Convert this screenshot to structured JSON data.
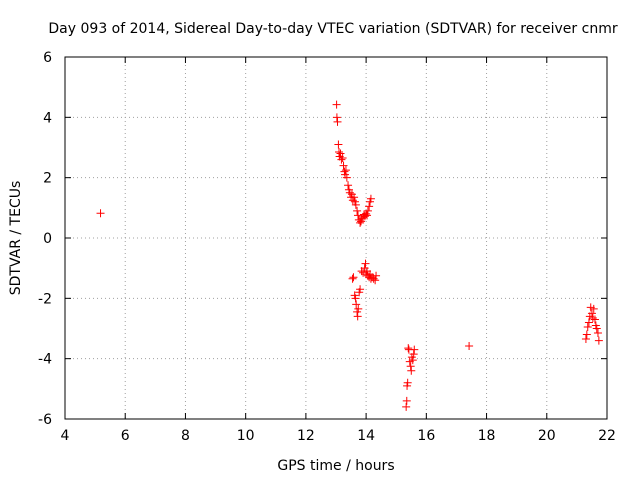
{
  "chart_data": {
    "type": "scatter",
    "title": "Day 093 of 2014, Sidereal Day-to-day VTEC variation (SDTVAR) for receiver cnmr",
    "xlabel": "GPS time / hours",
    "ylabel": "SDTVAR / TECUs",
    "xlim": [
      4,
      22
    ],
    "ylim": [
      -6,
      6
    ],
    "xticks": [
      "4",
      "6",
      "8",
      "10",
      "12",
      "14",
      "16",
      "18",
      "20",
      "22"
    ],
    "yticks": [
      "-6",
      "-4",
      "-2",
      "0",
      "2",
      "4",
      "6"
    ],
    "grid": true,
    "marker": "+",
    "marker_color": "#ff0000",
    "series": [
      {
        "name": "SDTVAR",
        "points": [
          [
            5.18,
            0.82
          ],
          [
            13.02,
            4.42
          ],
          [
            13.03,
            4.0
          ],
          [
            13.05,
            3.85
          ],
          [
            13.08,
            3.1
          ],
          [
            13.1,
            2.85
          ],
          [
            13.12,
            2.7
          ],
          [
            13.15,
            2.8
          ],
          [
            13.18,
            2.6
          ],
          [
            13.22,
            2.65
          ],
          [
            13.25,
            2.4
          ],
          [
            13.28,
            2.2
          ],
          [
            13.3,
            2.1
          ],
          [
            13.33,
            2.25
          ],
          [
            13.36,
            2.0
          ],
          [
            13.4,
            1.75
          ],
          [
            13.43,
            1.6
          ],
          [
            13.46,
            1.5
          ],
          [
            13.5,
            1.35
          ],
          [
            13.53,
            1.45
          ],
          [
            13.56,
            1.25
          ],
          [
            13.6,
            1.35
          ],
          [
            13.63,
            1.2
          ],
          [
            13.66,
            1.1
          ],
          [
            13.7,
            0.9
          ],
          [
            13.73,
            0.75
          ],
          [
            13.76,
            0.6
          ],
          [
            13.8,
            0.5
          ],
          [
            13.83,
            0.55
          ],
          [
            13.86,
            0.65
          ],
          [
            13.9,
            0.7
          ],
          [
            13.93,
            0.78
          ],
          [
            13.96,
            0.72
          ],
          [
            14.0,
            0.8
          ],
          [
            14.03,
            0.75
          ],
          [
            14.06,
            0.9
          ],
          [
            14.1,
            1.05
          ],
          [
            14.13,
            1.2
          ],
          [
            14.16,
            1.3
          ],
          [
            13.55,
            -1.35
          ],
          [
            13.58,
            -1.3
          ],
          [
            13.62,
            -1.9
          ],
          [
            13.65,
            -2.0
          ],
          [
            13.67,
            -2.2
          ],
          [
            13.7,
            -2.45
          ],
          [
            13.72,
            -2.6
          ],
          [
            13.74,
            -2.35
          ],
          [
            13.77,
            -1.8
          ],
          [
            13.8,
            -1.7
          ],
          [
            13.85,
            -1.1
          ],
          [
            13.9,
            -1.15
          ],
          [
            13.95,
            -1.0
          ],
          [
            13.98,
            -0.85
          ],
          [
            14.0,
            -1.2
          ],
          [
            14.03,
            -1.1
          ],
          [
            14.06,
            -1.25
          ],
          [
            14.1,
            -1.3
          ],
          [
            14.13,
            -1.2
          ],
          [
            14.16,
            -1.35
          ],
          [
            14.2,
            -1.3
          ],
          [
            14.25,
            -1.35
          ],
          [
            14.3,
            -1.4
          ],
          [
            14.33,
            -1.25
          ],
          [
            15.33,
            -5.6
          ],
          [
            15.35,
            -5.4
          ],
          [
            15.36,
            -4.9
          ],
          [
            15.38,
            -4.8
          ],
          [
            15.4,
            -3.65
          ],
          [
            15.42,
            -3.7
          ],
          [
            15.45,
            -4.1
          ],
          [
            15.48,
            -4.25
          ],
          [
            15.5,
            -4.4
          ],
          [
            15.52,
            -3.95
          ],
          [
            15.55,
            -4.05
          ],
          [
            15.58,
            -3.85
          ],
          [
            15.6,
            -3.7
          ],
          [
            17.42,
            -3.58
          ],
          [
            21.3,
            -3.35
          ],
          [
            21.33,
            -3.2
          ],
          [
            21.36,
            -2.95
          ],
          [
            21.4,
            -2.8
          ],
          [
            21.43,
            -2.6
          ],
          [
            21.46,
            -2.3
          ],
          [
            21.5,
            -2.5
          ],
          [
            21.53,
            -2.65
          ],
          [
            21.56,
            -2.35
          ],
          [
            21.6,
            -2.7
          ],
          [
            21.63,
            -2.9
          ],
          [
            21.66,
            -3.0
          ],
          [
            21.7,
            -3.15
          ],
          [
            21.73,
            -3.4
          ]
        ]
      }
    ]
  }
}
